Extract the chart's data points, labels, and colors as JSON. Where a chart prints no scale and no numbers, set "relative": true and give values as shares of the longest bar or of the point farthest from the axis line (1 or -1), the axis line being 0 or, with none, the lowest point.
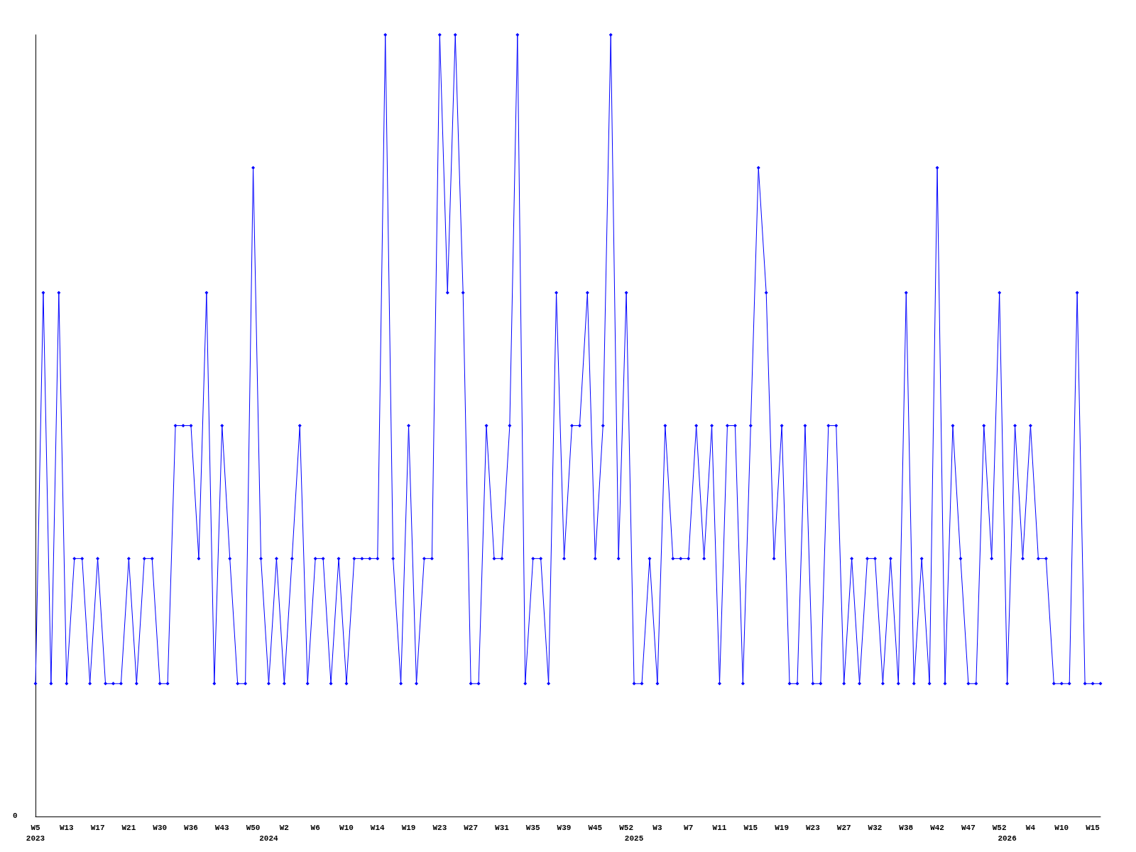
{
  "chart_data": {
    "type": "line",
    "relative": true,
    "marker": "diamond",
    "line_style": "solid",
    "grid": false,
    "annotations": [
      "0"
    ],
    "categories": [
      "W5\n2023",
      null,
      null,
      null,
      "W13",
      null,
      null,
      null,
      "W17",
      null,
      null,
      null,
      "W21",
      null,
      null,
      null,
      "W30",
      null,
      null,
      null,
      "W36",
      null,
      null,
      null,
      "W43",
      null,
      null,
      null,
      "W50",
      null,
      "\n2024",
      null,
      "W2",
      null,
      null,
      null,
      "W6",
      null,
      null,
      null,
      "W10",
      null,
      null,
      null,
      "W14",
      null,
      null,
      null,
      "W19",
      null,
      null,
      null,
      "W23",
      null,
      null,
      null,
      "W27",
      null,
      null,
      null,
      "W31",
      null,
      null,
      null,
      "W35",
      null,
      null,
      null,
      "W39",
      null,
      null,
      null,
      "W45",
      null,
      null,
      null,
      "W52",
      "\n2025",
      null,
      null,
      "W3",
      null,
      null,
      null,
      "W7",
      null,
      null,
      null,
      "W11",
      null,
      null,
      null,
      "W15",
      null,
      null,
      null,
      "W19",
      null,
      null,
      null,
      "W23",
      null,
      null,
      null,
      "W27",
      null,
      null,
      null,
      "W32",
      null,
      null,
      null,
      "W38",
      null,
      null,
      null,
      "W42",
      null,
      null,
      null,
      "W47",
      null,
      null,
      null,
      "W52",
      "\n2026",
      null,
      null,
      "W4",
      null,
      null,
      null,
      "W10",
      null,
      null,
      null,
      "W15",
      null
    ],
    "series": [
      {
        "color": "#0000ff",
        "values": [
          0.17,
          0.67,
          0.17,
          0.67,
          0.17,
          0.33,
          0.33,
          0.17,
          0.33,
          0.17,
          0.17,
          0.17,
          0.33,
          0.17,
          0.33,
          0.33,
          0.17,
          0.17,
          0.5,
          0.5,
          0.5,
          0.33,
          0.67,
          0.17,
          0.5,
          0.33,
          0.17,
          0.17,
          0.83,
          0.33,
          0.17,
          0.33,
          0.17,
          0.33,
          0.5,
          0.17,
          0.33,
          0.33,
          0.17,
          0.33,
          0.17,
          0.33,
          0.33,
          0.33,
          0.33,
          1,
          0.33,
          0.17,
          0.5,
          0.17,
          0.33,
          0.33,
          1,
          0.67,
          1,
          0.67,
          0.17,
          0.17,
          0.5,
          0.33,
          0.33,
          0.5,
          1,
          0.17,
          0.33,
          0.33,
          0.17,
          0.67,
          0.33,
          0.5,
          0.5,
          0.67,
          0.33,
          0.5,
          1,
          0.33,
          0.67,
          0.17,
          0.17,
          0.33,
          0.17,
          0.5,
          0.33,
          0.33,
          0.33,
          0.5,
          0.33,
          0.5,
          0.17,
          0.5,
          0.5,
          0.17,
          0.5,
          0.83,
          0.67,
          0.33,
          0.5,
          0.17,
          0.17,
          0.5,
          0.17,
          0.17,
          0.5,
          0.5,
          0.17,
          0.33,
          0.17,
          0.33,
          0.33,
          0.17,
          0.33,
          0.17,
          0.67,
          0.17,
          0.33,
          0.17,
          0.83,
          0.17,
          0.5,
          0.33,
          0.17,
          0.17,
          0.5,
          0.33,
          0.67,
          0.17,
          0.5,
          0.33,
          0.5,
          0.33,
          0.33,
          0.17,
          0.17,
          0.17,
          0.67,
          0.17,
          0.17,
          0.17
        ]
      }
    ]
  }
}
